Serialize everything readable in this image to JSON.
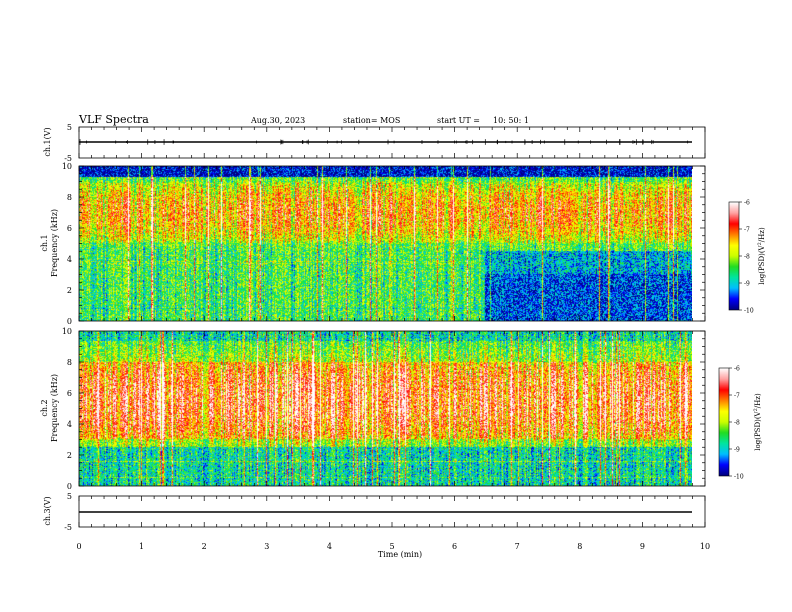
{
  "header": {
    "title": "VLF Spectra",
    "date": "Aug.30, 2023",
    "station": "station= MOS",
    "start_label": "start  UT  =",
    "start_time": "10: 50: 1"
  },
  "chart_data": [
    {
      "type": "line",
      "name": "ch1-voltage",
      "ylabel": "ch.1(V)",
      "ylim": [
        -5,
        5
      ],
      "yticks": [
        "5",
        "-5"
      ],
      "series": [
        {
          "x": [
            0,
            9.82
          ],
          "y": [
            0,
            0
          ]
        }
      ]
    },
    {
      "type": "heatmap",
      "name": "ch1-spectrogram",
      "ylabel": "ch.1\nFrequency (kHz)",
      "ylim": [
        0,
        10
      ],
      "yticks": [
        "0",
        "2",
        "4",
        "6",
        "8",
        "10"
      ],
      "data_xlim": [
        0,
        9.82
      ],
      "intense_band_khz": [
        5,
        9
      ],
      "low_band_khz": [
        0,
        4.5
      ],
      "change_time_min": 6.5,
      "colorbar": {
        "label": "log(PSD)(V²/Hz)",
        "range": [
          -10,
          -6
        ],
        "ticks": [
          "-6",
          "-7",
          "-8",
          "-9",
          "-10"
        ]
      }
    },
    {
      "type": "heatmap",
      "name": "ch2-spectrogram",
      "ylabel": "ch.2\nFrequency (kHz)",
      "ylim": [
        0,
        10
      ],
      "yticks": [
        "0",
        "2",
        "4",
        "6",
        "8",
        "10"
      ],
      "data_xlim": [
        0,
        9.82
      ],
      "intense_band_khz": [
        3,
        8
      ],
      "colorbar": {
        "label": "log(PSD)(V²/Hz)",
        "range": [
          -10,
          -6
        ],
        "ticks": [
          "-6",
          "-7",
          "-8",
          "-9",
          "-10"
        ]
      }
    },
    {
      "type": "line",
      "name": "ch3-voltage",
      "ylabel": "ch.3(V)",
      "ylim": [
        -5,
        5
      ],
      "yticks": [
        "5",
        "-5"
      ],
      "series": [
        {
          "x": [
            0,
            9.82
          ],
          "y": [
            0,
            0
          ]
        }
      ]
    }
  ],
  "xaxis": {
    "label": "Time  (min)",
    "xlim": [
      0,
      10
    ],
    "ticks": [
      "0",
      "1",
      "2",
      "3",
      "4",
      "5",
      "6",
      "7",
      "8",
      "9",
      "10"
    ]
  },
  "colors": {
    "colormap": [
      "#000080",
      "#0000ff",
      "#00bfff",
      "#00e5a0",
      "#22dd22",
      "#ccff00",
      "#ffff00",
      "#ff8000",
      "#ff0000",
      "#ffa0a0",
      "#ffffff"
    ]
  }
}
